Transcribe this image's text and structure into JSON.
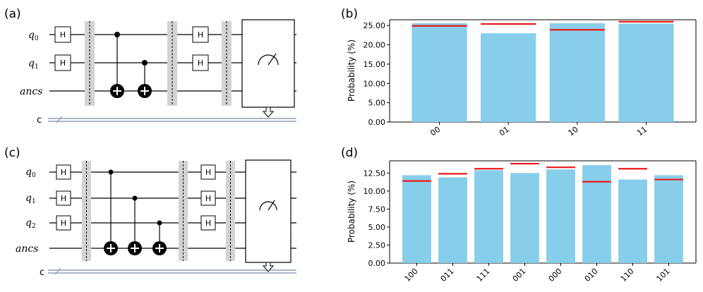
{
  "panels": {
    "a": "(a)",
    "b": "(b)",
    "c": "(c)",
    "d": "(d)"
  },
  "circuit_a": {
    "qubits": [
      "q0",
      "q1",
      "ancs"
    ],
    "qubit_base": [
      "q",
      "q",
      "ancs"
    ],
    "qubit_sub": [
      "0",
      "1",
      ""
    ],
    "classical_label": "c",
    "gate_label": "H"
  },
  "circuit_c": {
    "qubits": [
      "q0",
      "q1",
      "q2",
      "ancs"
    ],
    "qubit_base": [
      "q",
      "q",
      "q",
      "ancs"
    ],
    "qubit_sub": [
      "0",
      "1",
      "2",
      ""
    ],
    "classical_label": "c",
    "gate_label": "H"
  },
  "colors": {
    "bar": "#87ceeb",
    "ideal_line": "#e8191a",
    "wire": "#000000",
    "classical": "#7a8ea8",
    "barrier": "#d3d3d3"
  },
  "chart_data": [
    {
      "panel": "b",
      "type": "bar",
      "categories": [
        "00",
        "01",
        "10",
        "11"
      ],
      "values": [
        25.6,
        23.0,
        25.6,
        25.5
      ],
      "reference_lines": [
        24.9,
        25.4,
        23.9,
        26.0
      ],
      "ylabel": "Probability (%)",
      "xlabel": "",
      "ylim": [
        0,
        26.5
      ],
      "yticks": [
        "0.00",
        "5.00",
        "10.00",
        "15.00",
        "20.00",
        "25.00"
      ],
      "ytick_values": [
        0,
        5,
        10,
        15,
        20,
        25
      ]
    },
    {
      "panel": "d",
      "type": "bar",
      "categories": [
        "100",
        "011",
        "111",
        "001",
        "000",
        "010",
        "110",
        "101"
      ],
      "values": [
        12.2,
        11.9,
        12.9,
        12.5,
        13.0,
        13.6,
        11.6,
        12.2
      ],
      "reference_lines": [
        11.4,
        12.4,
        13.1,
        13.8,
        13.3,
        11.3,
        13.1,
        11.6
      ],
      "ylabel": "Probability (%)",
      "xlabel": "",
      "ylim": [
        0,
        14.2
      ],
      "yticks": [
        "0.00",
        "2.50",
        "5.00",
        "7.50",
        "10.00",
        "12.50"
      ],
      "ytick_values": [
        0,
        2.5,
        5,
        7.5,
        10,
        12.5
      ]
    }
  ]
}
